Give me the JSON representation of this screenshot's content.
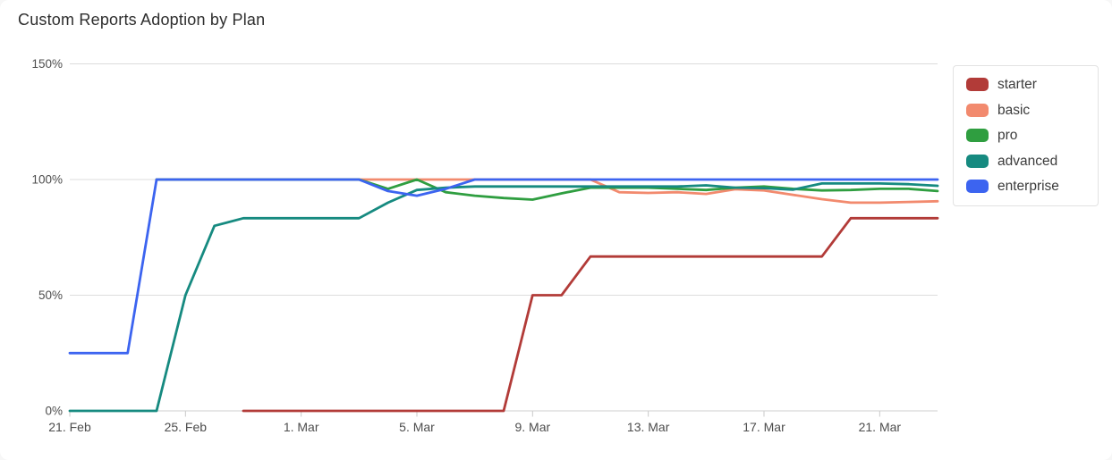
{
  "chart_data": {
    "type": "line",
    "title": "Custom Reports Adoption by Plan",
    "xlabel": "",
    "ylabel": "",
    "unit": "%",
    "grid": true,
    "legend_position": "right",
    "ylim": [
      0,
      150
    ],
    "y_ticks": [
      0,
      50,
      100,
      150
    ],
    "y_tick_labels": [
      "0%",
      "50%",
      "100%",
      "150%"
    ],
    "x": [
      "21. Feb",
      "22. Feb",
      "23. Feb",
      "24. Feb",
      "25. Feb",
      "26. Feb",
      "27. Feb",
      "28. Feb",
      "1. Mar",
      "2. Mar",
      "3. Mar",
      "4. Mar",
      "5. Mar",
      "6. Mar",
      "7. Mar",
      "8. Mar",
      "9. Mar",
      "10. Mar",
      "11. Mar",
      "12. Mar",
      "13. Mar",
      "14. Mar",
      "15. Mar",
      "16. Mar",
      "17. Mar",
      "18. Mar",
      "19. Mar",
      "20. Mar",
      "21. Mar",
      "22. Mar",
      "23. Mar"
    ],
    "x_tick_indices": [
      0,
      4,
      8,
      12,
      16,
      20,
      24,
      28
    ],
    "x_tick_labels": [
      "21. Feb",
      "25. Feb",
      "1. Mar",
      "5. Mar",
      "9. Mar",
      "13. Mar",
      "17. Mar",
      "21. Mar"
    ],
    "series": [
      {
        "name": "starter",
        "color": "#b23b38",
        "values": [
          null,
          null,
          null,
          null,
          null,
          null,
          0,
          0,
          0,
          0,
          0,
          0,
          0,
          0,
          0,
          0,
          50,
          50,
          66.7,
          66.7,
          66.7,
          66.7,
          66.7,
          66.7,
          66.7,
          66.7,
          66.7,
          83.3,
          83.3,
          83.3,
          83.3
        ]
      },
      {
        "name": "basic",
        "color": "#f28a6e",
        "values": [
          null,
          null,
          null,
          100,
          100,
          100,
          100,
          100,
          100,
          100,
          100,
          100,
          100,
          100,
          100,
          100,
          100,
          100,
          100,
          94.5,
          94.2,
          94.5,
          93.8,
          95.8,
          95.3,
          93.4,
          91.5,
          90,
          90,
          90.3,
          90.6
        ]
      },
      {
        "name": "pro",
        "color": "#2f9e40",
        "values": [
          null,
          null,
          null,
          100,
          100,
          100,
          100,
          100,
          100,
          100,
          100,
          96,
          100,
          94.5,
          93,
          92,
          91.3,
          94,
          96.5,
          96.5,
          96.5,
          96,
          95.5,
          96.5,
          97,
          96,
          95.3,
          95.5,
          96,
          96,
          95
        ]
      },
      {
        "name": "advanced",
        "color": "#168a80",
        "values": [
          0,
          0,
          0,
          0,
          50,
          80,
          83.3,
          83.3,
          83.3,
          83.3,
          83.3,
          90,
          95.5,
          96.5,
          97,
          97,
          97,
          97,
          97,
          97,
          97,
          97,
          97.5,
          96.5,
          96.3,
          95.6,
          98.3,
          98.3,
          98.3,
          98,
          97.3
        ]
      },
      {
        "name": "enterprise",
        "color": "#3c64f0",
        "values": [
          25,
          25,
          25,
          100,
          100,
          100,
          100,
          100,
          100,
          100,
          100,
          95,
          93,
          96,
          100,
          100,
          100,
          100,
          100,
          100,
          100,
          100,
          100,
          100,
          100,
          100,
          100,
          100,
          100,
          100,
          100
        ]
      }
    ]
  },
  "legend": {
    "items": [
      "starter",
      "basic",
      "pro",
      "advanced",
      "enterprise"
    ]
  }
}
